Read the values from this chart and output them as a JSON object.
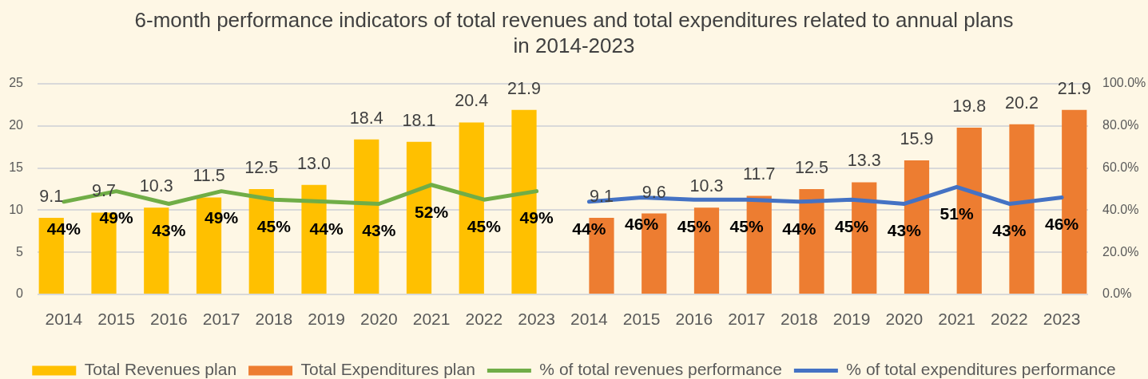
{
  "chart_data": {
    "type": "bar",
    "title": "6-month performance indicators of total revenues and total expenditures related to annual plans in 2014-2023",
    "categories": [
      "2014",
      "2015",
      "2016",
      "2017",
      "2018",
      "2019",
      "2020",
      "2021",
      "2022",
      "2023",
      "2014",
      "2015",
      "2016",
      "2017",
      "2018",
      "2019",
      "2020",
      "2021",
      "2022",
      "2023"
    ],
    "series": [
      {
        "name": "Total Revenues plan",
        "color": "#ffc000",
        "values": [
          9.1,
          9.7,
          10.3,
          11.5,
          12.5,
          13.0,
          18.4,
          18.1,
          20.4,
          21.9,
          null,
          null,
          null,
          null,
          null,
          null,
          null,
          null,
          null,
          null
        ],
        "value_labels": [
          "9.1",
          "9.7",
          "10.3",
          "11.5",
          "12.5",
          "13.0",
          "18.4",
          "18.1",
          "20.4",
          "21.9",
          null,
          null,
          null,
          null,
          null,
          null,
          null,
          null,
          null,
          null
        ]
      },
      {
        "name": "Total Expenditures plan",
        "color": "#ed7d31",
        "values": [
          null,
          null,
          null,
          null,
          null,
          null,
          null,
          null,
          null,
          null,
          9.1,
          9.6,
          10.3,
          11.7,
          12.5,
          13.3,
          15.9,
          19.8,
          20.2,
          21.9
        ],
        "value_labels": [
          null,
          null,
          null,
          null,
          null,
          null,
          null,
          null,
          null,
          null,
          "9.1",
          "9.6",
          "10.3",
          "11.7",
          "12.5",
          "13.3",
          "15.9",
          "19.8",
          "20.2",
          "21.9"
        ]
      },
      {
        "name": "% of total revenues performance",
        "type": "line",
        "axis": "y2",
        "color": "#70ad47",
        "values": [
          44,
          49,
          43,
          49,
          45,
          44,
          43,
          52,
          45,
          49,
          null,
          null,
          null,
          null,
          null,
          null,
          null,
          null,
          null,
          null
        ],
        "value_labels": [
          "44%",
          "49%",
          "43%",
          "49%",
          "45%",
          "44%",
          "43%",
          "52%",
          "45%",
          "49%",
          null,
          null,
          null,
          null,
          null,
          null,
          null,
          null,
          null,
          null
        ]
      },
      {
        "name": "% of total expenditures performance",
        "type": "line",
        "axis": "y2",
        "color": "#4472c4",
        "values": [
          null,
          null,
          null,
          null,
          null,
          null,
          null,
          null,
          null,
          null,
          44,
          46,
          45,
          45,
          44,
          45,
          43,
          51,
          43,
          46
        ],
        "value_labels": [
          null,
          null,
          null,
          null,
          null,
          null,
          null,
          null,
          null,
          null,
          "44%",
          "46%",
          "45%",
          "45%",
          "44%",
          "45%",
          "43%",
          "51%",
          "43%",
          "46%"
        ]
      }
    ],
    "ylim": [
      0,
      25
    ],
    "yticks": [
      0,
      5,
      10,
      15,
      20,
      25
    ],
    "y2lim": [
      0,
      100
    ],
    "y2ticks": [
      {
        "value": 0,
        "label": "0.0%"
      },
      {
        "value": 20,
        "label": "20.0%"
      },
      {
        "value": 40,
        "label": "40.0%"
      },
      {
        "value": 60,
        "label": "60.0%"
      },
      {
        "value": 80,
        "label": "80.0%"
      },
      {
        "value": 100,
        "label": "100.0%"
      }
    ],
    "grid": "y",
    "legend": "bottom",
    "marker": "none"
  }
}
